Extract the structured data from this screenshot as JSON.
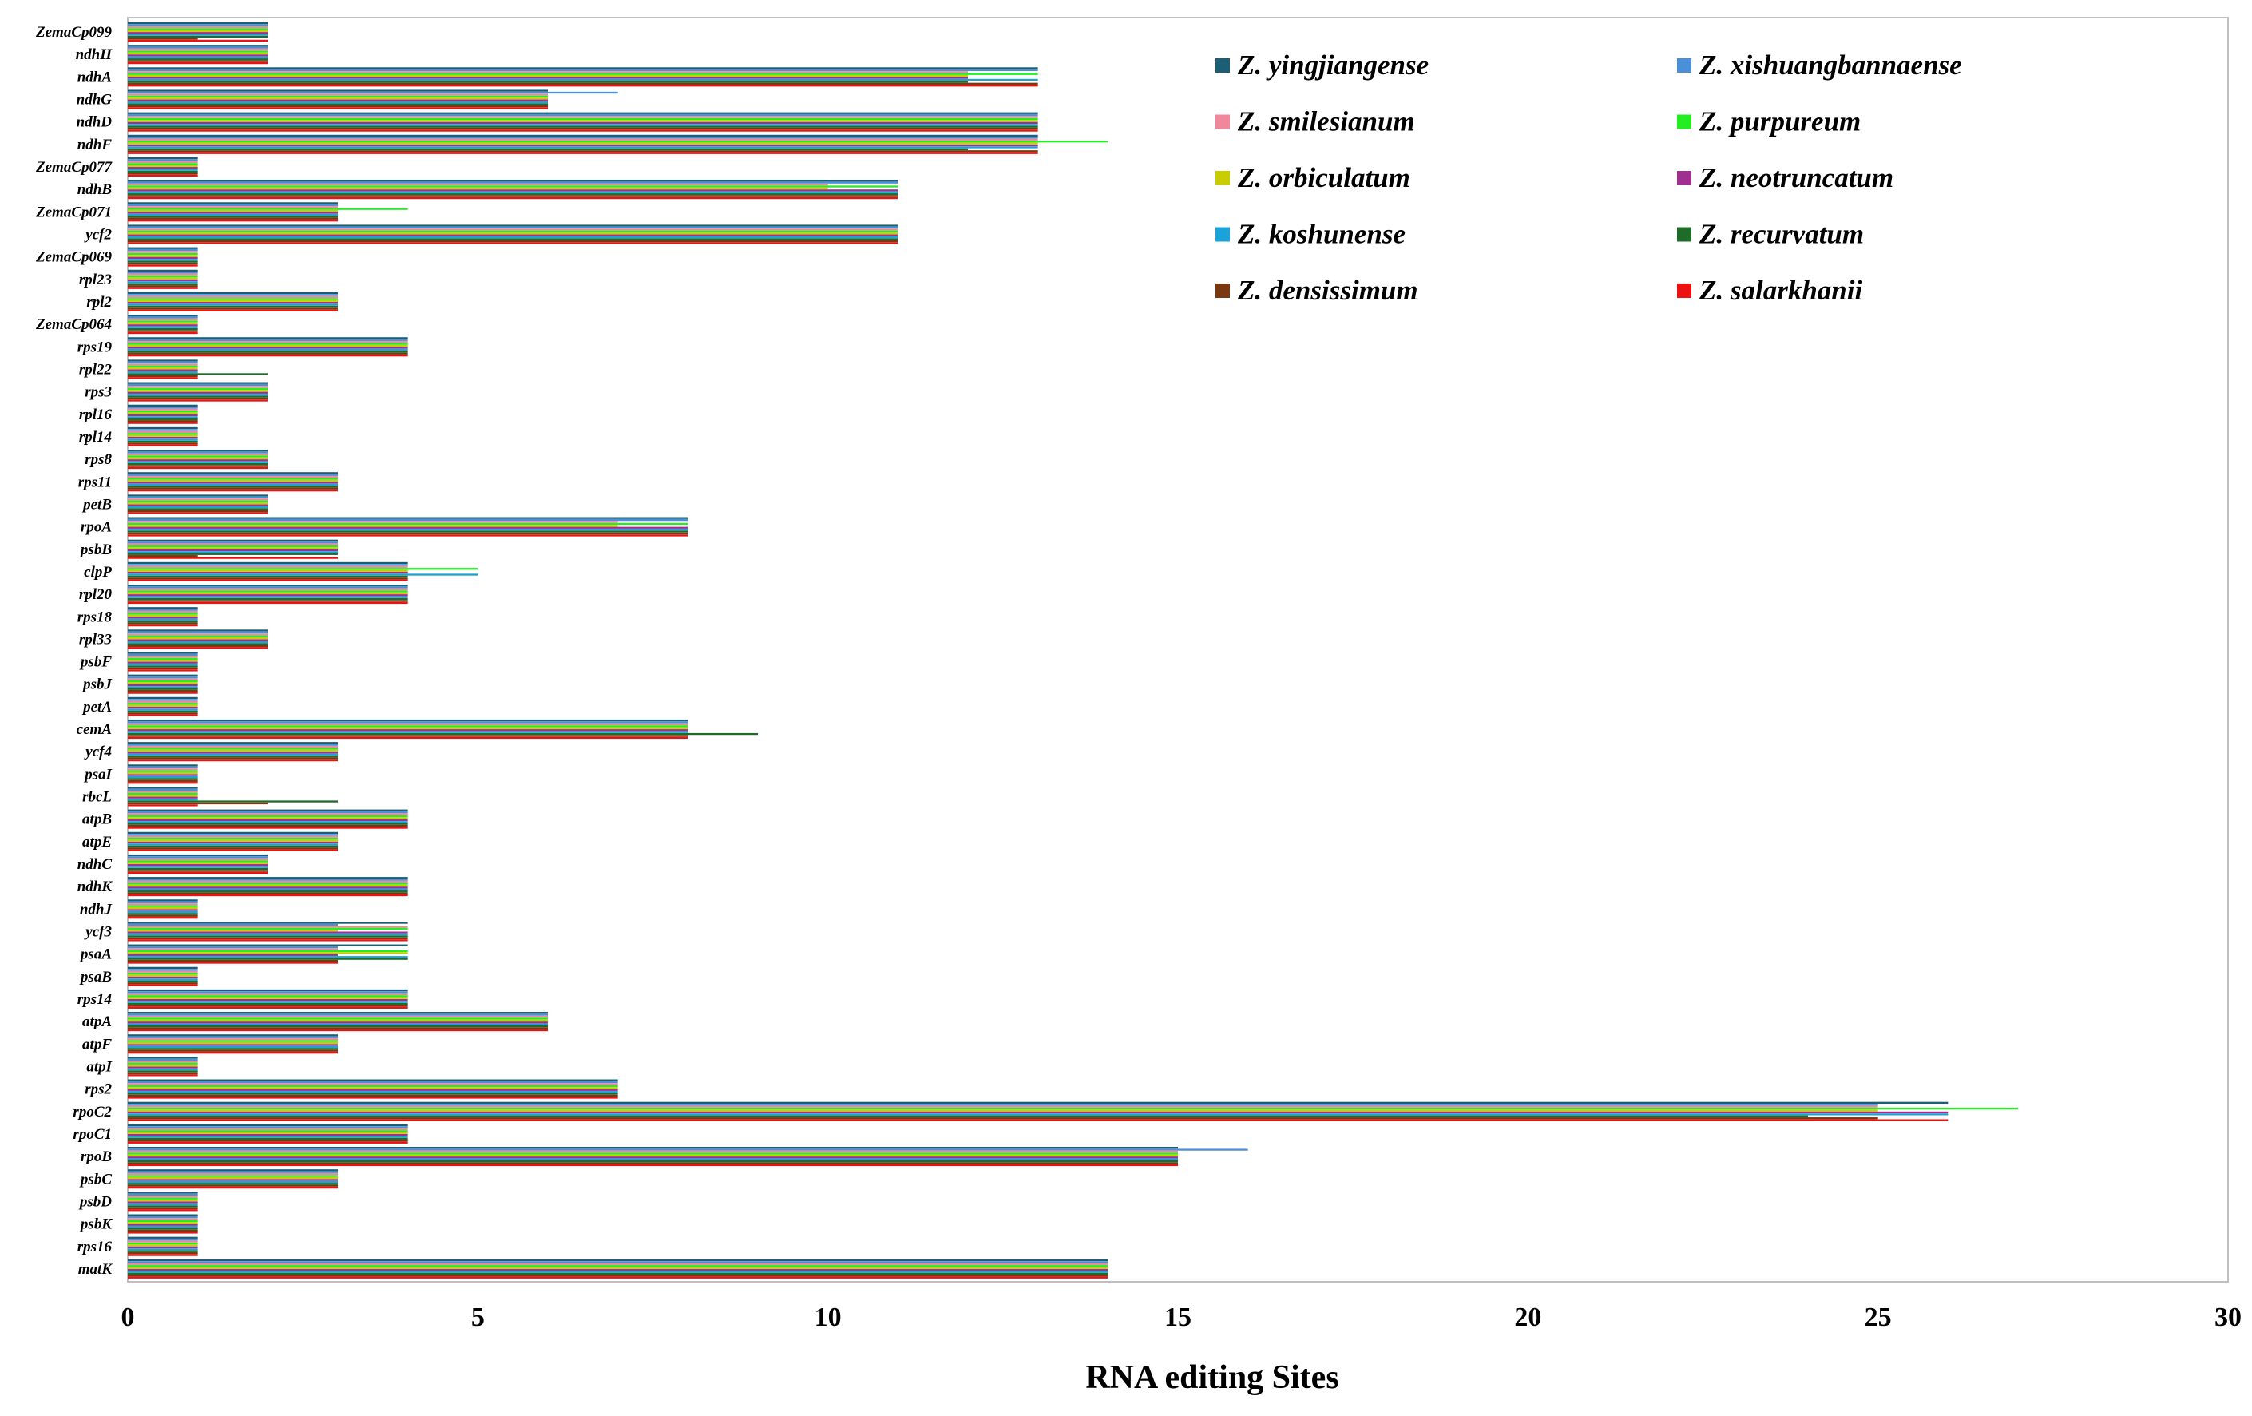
{
  "chart_data": {
    "type": "bar",
    "orientation": "horizontal",
    "title": "",
    "xlabel": "RNA editing Sites",
    "ylabel": "",
    "xlim": [
      0,
      30
    ],
    "xticks": [
      0,
      5,
      10,
      15,
      20,
      25,
      30
    ],
    "legend_position": "top-right",
    "categories": [
      "ZemaCp099",
      "ndhH",
      "ndhA",
      "ndhG",
      "ndhD",
      "ndhF",
      "ZemaCp077",
      "ndhB",
      "ZemaCp071",
      "ycf2",
      "ZemaCp069",
      "rpl23",
      "rpl2",
      "ZemaCp064",
      "rps19",
      "rpl22",
      "rps3",
      "rpl16",
      "rpl14",
      "rps8",
      "rps11",
      "petB",
      "rpoA",
      "psbB",
      "clpP",
      "rpl20",
      "rps18",
      "rpl33",
      "psbF",
      "psbJ",
      "petA",
      "cemA",
      "ycf4",
      "psaI",
      "rbcL",
      "atpB",
      "atpE",
      "ndhC",
      "ndhK",
      "ndhJ",
      "ycf3",
      "psaA",
      "psaB",
      "rps14",
      "atpA",
      "atpF",
      "atpI",
      "rps2",
      "rpoC2",
      "rpoC1",
      "rpoB",
      "psbC",
      "psbD",
      "psbK",
      "rps16",
      "matK"
    ],
    "series": [
      {
        "name": "Z. yingjiangense",
        "color": "#1b5e75",
        "values": [
          2,
          2,
          13,
          6,
          13,
          13,
          1,
          11,
          3,
          11,
          1,
          1,
          3,
          1,
          4,
          1,
          2,
          1,
          1,
          2,
          3,
          2,
          8,
          3,
          4,
          4,
          1,
          2,
          1,
          1,
          1,
          8,
          3,
          1,
          1,
          4,
          3,
          2,
          4,
          1,
          4,
          4,
          1,
          4,
          6,
          3,
          1,
          7,
          26,
          4,
          15,
          3,
          1,
          1,
          1,
          14
        ]
      },
      {
        "name": "Z. xishuangbannaense",
        "color": "#4a90d9",
        "values": [
          2,
          2,
          13,
          7,
          13,
          13,
          1,
          11,
          3,
          11,
          1,
          1,
          3,
          1,
          4,
          1,
          2,
          1,
          1,
          2,
          3,
          2,
          8,
          3,
          4,
          4,
          1,
          2,
          1,
          1,
          1,
          8,
          3,
          1,
          1,
          4,
          3,
          2,
          4,
          1,
          3,
          3,
          1,
          4,
          6,
          3,
          1,
          7,
          25,
          4,
          16,
          3,
          1,
          1,
          1,
          14
        ]
      },
      {
        "name": "Z. smilesianum",
        "color": "#f0879a",
        "values": [
          2,
          2,
          12,
          6,
          13,
          13,
          1,
          10,
          3,
          11,
          1,
          1,
          3,
          1,
          4,
          1,
          2,
          1,
          1,
          2,
          3,
          2,
          7,
          3,
          4,
          4,
          1,
          2,
          1,
          1,
          1,
          8,
          3,
          1,
          1,
          4,
          3,
          2,
          4,
          1,
          4,
          3,
          1,
          4,
          6,
          3,
          1,
          7,
          25,
          4,
          15,
          3,
          1,
          1,
          1,
          14
        ]
      },
      {
        "name": "Z. purpureum",
        "color": "#22ee22",
        "values": [
          2,
          2,
          13,
          6,
          13,
          14,
          1,
          11,
          4,
          11,
          1,
          1,
          3,
          1,
          4,
          1,
          2,
          1,
          1,
          2,
          3,
          2,
          8,
          3,
          5,
          4,
          1,
          2,
          1,
          1,
          1,
          8,
          3,
          1,
          1,
          4,
          3,
          2,
          4,
          1,
          4,
          4,
          1,
          4,
          6,
          3,
          1,
          7,
          27,
          4,
          15,
          3,
          1,
          1,
          1,
          14
        ]
      },
      {
        "name": "Z. orbiculatum",
        "color": "#c8cc00",
        "values": [
          2,
          2,
          12,
          6,
          13,
          13,
          1,
          10,
          3,
          11,
          1,
          1,
          3,
          1,
          4,
          1,
          2,
          1,
          1,
          2,
          3,
          2,
          7,
          3,
          4,
          4,
          1,
          2,
          1,
          1,
          1,
          8,
          3,
          1,
          1,
          4,
          3,
          2,
          4,
          1,
          3,
          4,
          1,
          4,
          6,
          3,
          1,
          7,
          25,
          4,
          15,
          3,
          1,
          1,
          1,
          14
        ]
      },
      {
        "name": "Z. neotruncatum",
        "color": "#a03090",
        "values": [
          2,
          2,
          12,
          6,
          13,
          13,
          1,
          11,
          3,
          11,
          1,
          1,
          3,
          1,
          4,
          1,
          2,
          1,
          1,
          2,
          3,
          2,
          8,
          3,
          4,
          4,
          1,
          2,
          1,
          1,
          1,
          8,
          3,
          1,
          1,
          4,
          3,
          2,
          4,
          1,
          4,
          3,
          1,
          4,
          6,
          3,
          1,
          7,
          26,
          4,
          15,
          3,
          1,
          1,
          1,
          14
        ]
      },
      {
        "name": "Z. koshunense",
        "color": "#1aa3d8",
        "values": [
          2,
          2,
          13,
          6,
          13,
          13,
          1,
          11,
          3,
          11,
          1,
          1,
          3,
          1,
          4,
          1,
          2,
          1,
          1,
          2,
          3,
          2,
          8,
          3,
          5,
          4,
          1,
          2,
          1,
          1,
          1,
          8,
          3,
          1,
          1,
          4,
          3,
          2,
          4,
          1,
          4,
          4,
          1,
          4,
          6,
          3,
          1,
          7,
          26,
          4,
          15,
          3,
          1,
          1,
          1,
          14
        ]
      },
      {
        "name": "Z. recurvatum",
        "color": "#1e6b2a",
        "values": [
          2,
          2,
          12,
          6,
          13,
          12,
          1,
          11,
          3,
          11,
          1,
          1,
          3,
          1,
          4,
          2,
          2,
          1,
          1,
          2,
          3,
          2,
          8,
          3,
          4,
          4,
          1,
          2,
          1,
          1,
          1,
          9,
          3,
          1,
          3,
          4,
          3,
          2,
          4,
          1,
          4,
          4,
          1,
          4,
          6,
          3,
          1,
          7,
          24,
          4,
          15,
          3,
          1,
          1,
          1,
          14
        ]
      },
      {
        "name": "Z. densissimum",
        "color": "#7a3810",
        "values": [
          1,
          2,
          13,
          6,
          13,
          13,
          1,
          11,
          3,
          11,
          1,
          1,
          3,
          1,
          4,
          1,
          2,
          1,
          1,
          2,
          3,
          2,
          8,
          1,
          4,
          4,
          1,
          2,
          1,
          1,
          1,
          8,
          3,
          1,
          2,
          4,
          3,
          2,
          4,
          1,
          4,
          3,
          1,
          4,
          6,
          3,
          1,
          7,
          25,
          4,
          15,
          3,
          1,
          1,
          1,
          14
        ]
      },
      {
        "name": "Z. salarkhanii",
        "color": "#ee1111",
        "values": [
          2,
          2,
          13,
          6,
          13,
          13,
          1,
          11,
          3,
          11,
          1,
          1,
          3,
          1,
          4,
          1,
          2,
          1,
          1,
          2,
          3,
          2,
          8,
          3,
          4,
          4,
          1,
          2,
          1,
          1,
          1,
          8,
          3,
          1,
          1,
          4,
          3,
          2,
          4,
          1,
          4,
          3,
          1,
          4,
          6,
          3,
          1,
          7,
          26,
          4,
          15,
          3,
          1,
          1,
          1,
          14
        ]
      }
    ]
  }
}
